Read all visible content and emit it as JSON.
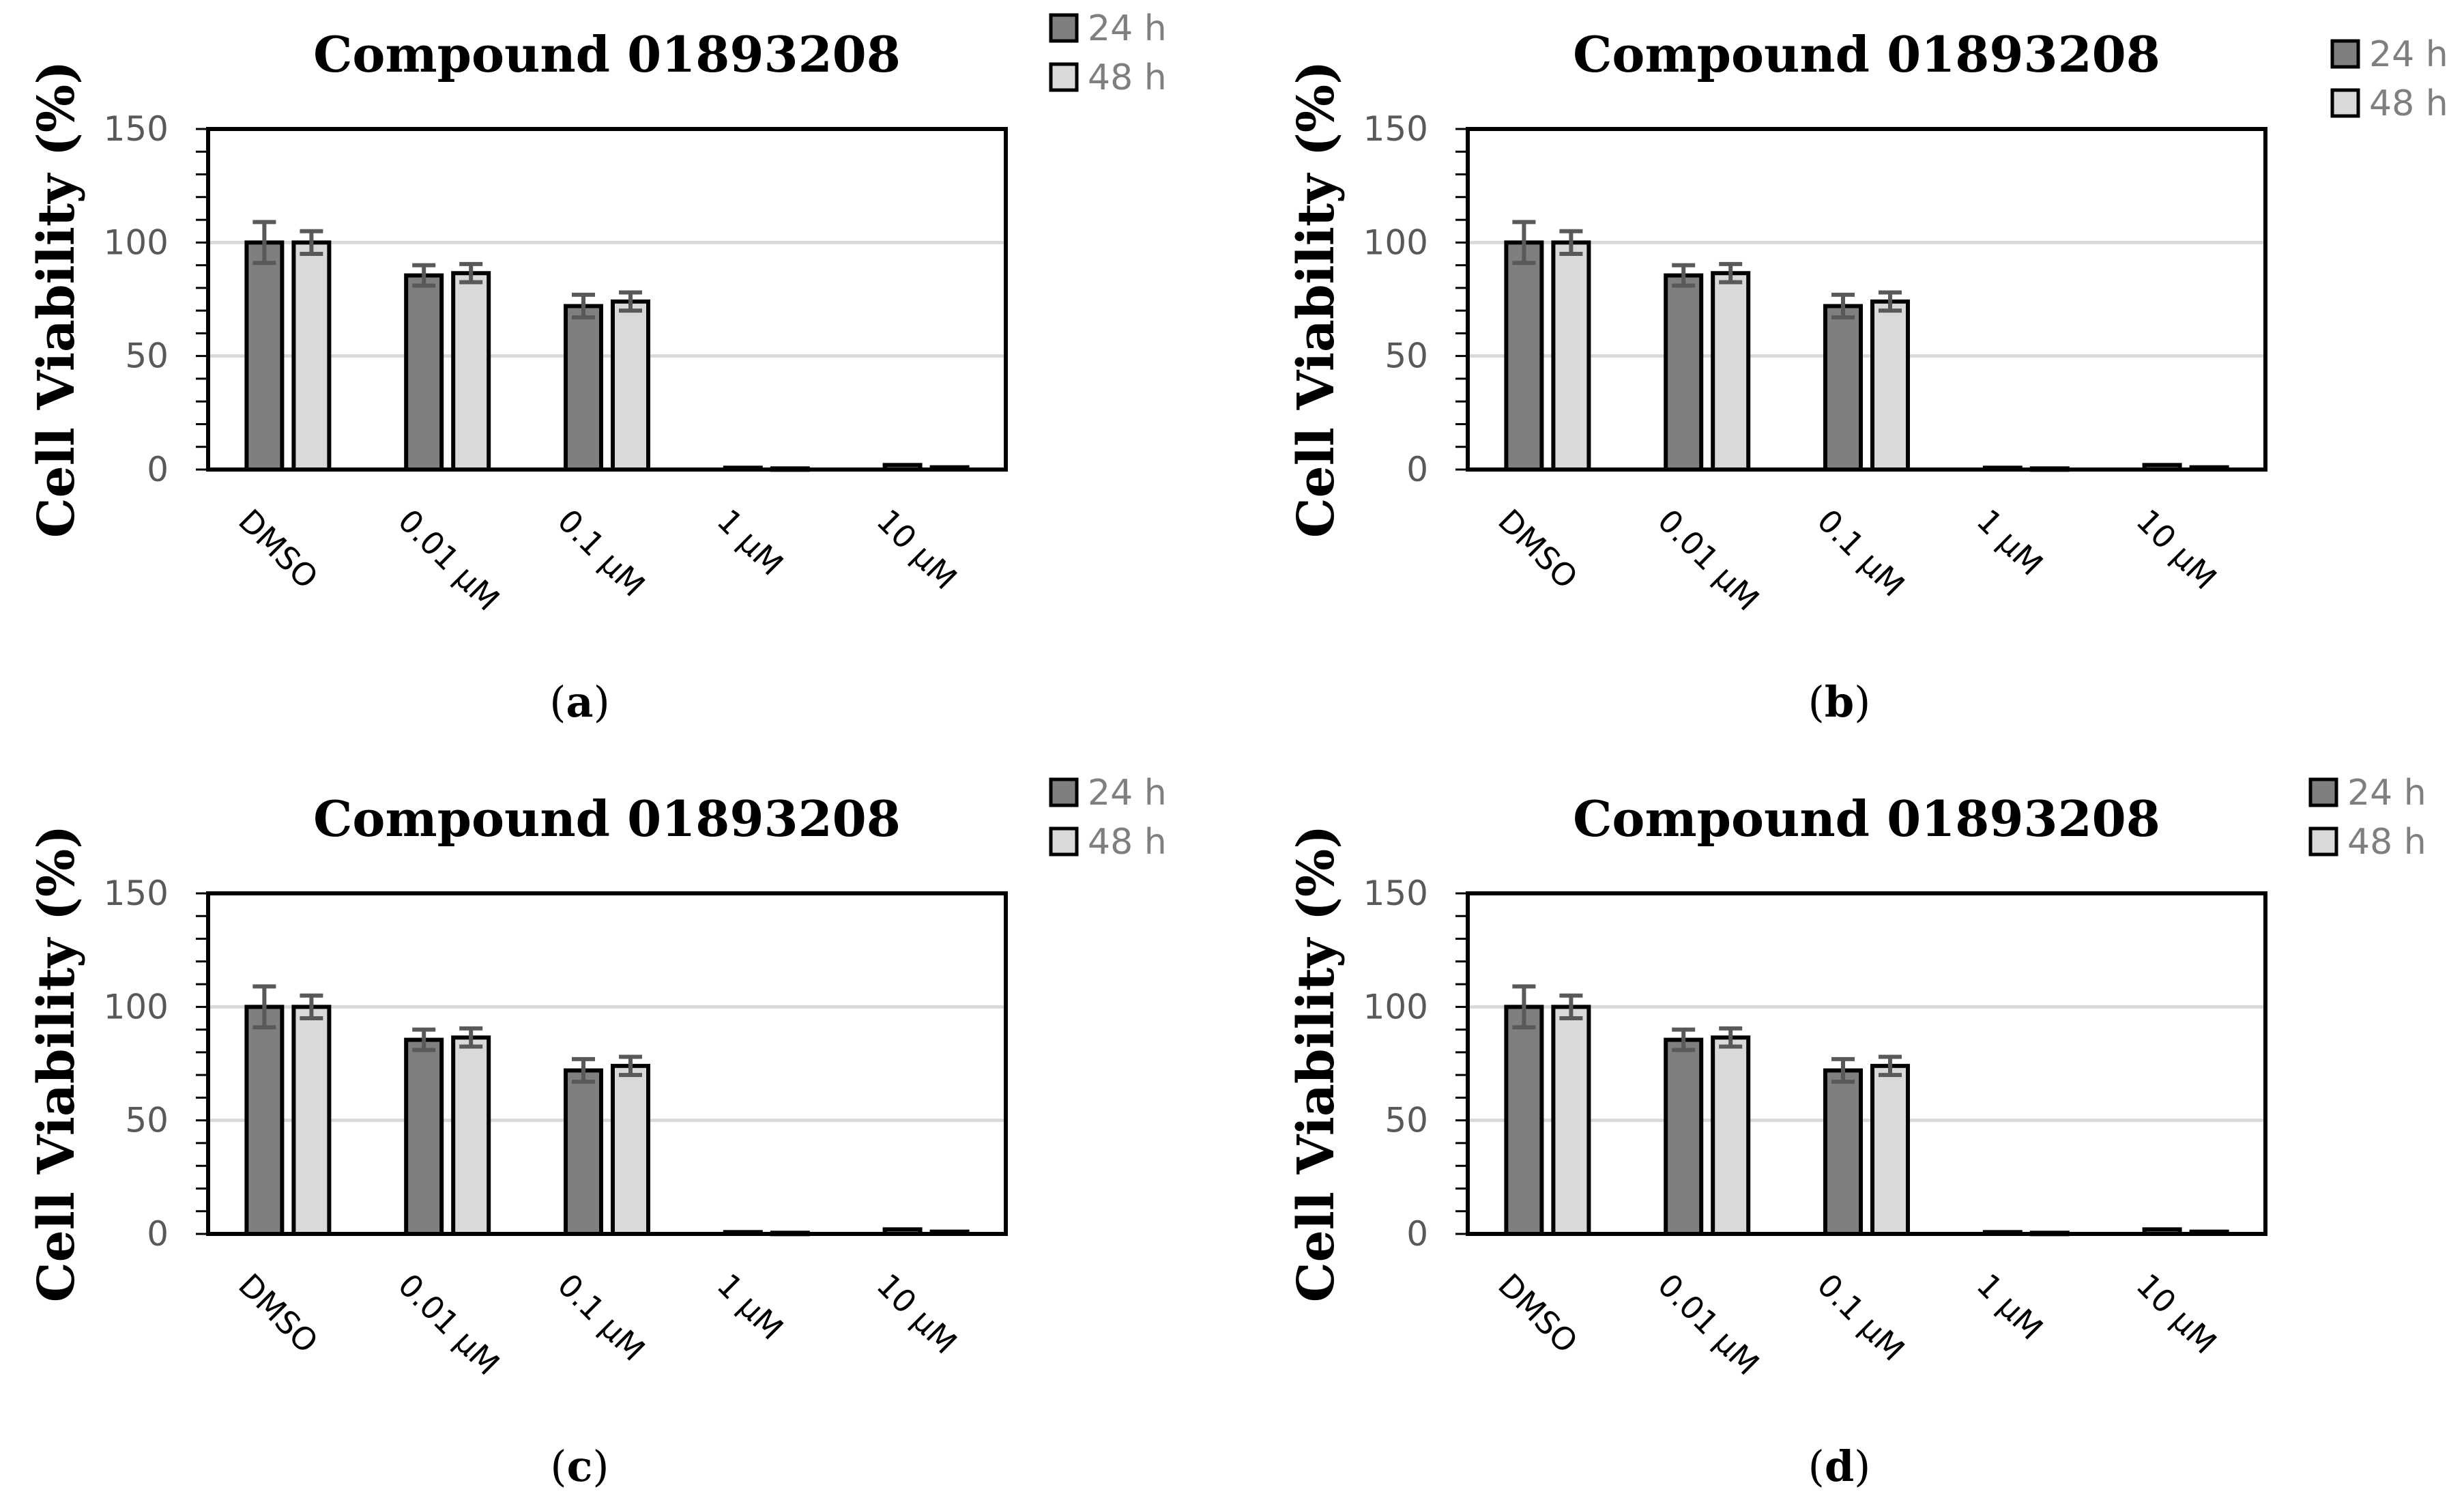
{
  "colors": {
    "series_24h": "#7f7f7f",
    "series_48h": "#d9d9d9",
    "error_bar": "#595959",
    "gridline": "#d9d9d9",
    "axis": "#000000",
    "tick_text": "#595959",
    "legend_text": "#7f7f7f"
  },
  "chart_data": [
    {
      "panel_label": "a",
      "type": "bar",
      "title": "Compound 01893208",
      "xlabel": "",
      "ylabel": "Cell Viability (%)",
      "ylim": [
        0,
        150
      ],
      "yticks": [
        0,
        50,
        100,
        150
      ],
      "grid": true,
      "legend_position": "top-right",
      "categories": [
        "DMSO",
        "0.01 μM",
        "0.1 μM",
        "1 μM",
        "10 μM"
      ],
      "series": [
        {
          "name": "24 h",
          "values": [
            100,
            85.5,
            72,
            0.8,
            2
          ],
          "errors": [
            9,
            4.5,
            5,
            0.3,
            0.5
          ]
        },
        {
          "name": "48 h",
          "values": [
            100,
            86.5,
            74,
            0.5,
            1
          ],
          "errors": [
            5,
            4,
            4,
            0.3,
            0.3
          ]
        }
      ]
    },
    {
      "panel_label": "b",
      "type": "bar",
      "title": "Compound 01893208",
      "xlabel": "",
      "ylabel": "Cell Viability (%)",
      "ylim": [
        0,
        150
      ],
      "yticks": [
        0,
        50,
        100,
        150
      ],
      "grid": true,
      "legend_position": "top-right",
      "categories": [
        "DMSO",
        "0.01 μM",
        "0.1 μM",
        "1 μM",
        "10 μM"
      ],
      "series": [
        {
          "name": "24 h",
          "values": [
            100,
            85.5,
            72,
            0.8,
            2
          ],
          "errors": [
            9,
            4.5,
            5,
            0.3,
            0.5
          ]
        },
        {
          "name": "48 h",
          "values": [
            100,
            86.5,
            74,
            0.5,
            1
          ],
          "errors": [
            5,
            4,
            4,
            0.3,
            0.3
          ]
        }
      ]
    },
    {
      "panel_label": "c",
      "type": "bar",
      "title": "Compound 01893208",
      "xlabel": "",
      "ylabel": "Cell Viability (%)",
      "ylim": [
        0,
        150
      ],
      "yticks": [
        0,
        50,
        100,
        150
      ],
      "grid": true,
      "legend_position": "top-right",
      "categories": [
        "DMSO",
        "0.01 μM",
        "0.1 μM",
        "1 μM",
        "10 μM"
      ],
      "series": [
        {
          "name": "24 h",
          "values": [
            100,
            85.5,
            72,
            0.8,
            2
          ],
          "errors": [
            9,
            4.5,
            5,
            0.3,
            0.5
          ]
        },
        {
          "name": "48 h",
          "values": [
            100,
            86.5,
            74,
            0.5,
            1
          ],
          "errors": [
            5,
            4,
            4,
            0.3,
            0.3
          ]
        }
      ]
    },
    {
      "panel_label": "d",
      "type": "bar",
      "title": "Compound 01893208",
      "xlabel": "",
      "ylabel": "Cell Viability (%)",
      "ylim": [
        0,
        150
      ],
      "yticks": [
        0,
        50,
        100,
        150
      ],
      "grid": true,
      "legend_position": "top-right",
      "categories": [
        "DMSO",
        "0.01 μM",
        "0.1 μM",
        "1 μM",
        "10 μM"
      ],
      "series": [
        {
          "name": "24 h",
          "values": [
            100,
            85.5,
            72,
            0.8,
            2
          ],
          "errors": [
            9,
            4.5,
            5,
            0.3,
            0.5
          ]
        },
        {
          "name": "48 h",
          "values": [
            100,
            86.5,
            74,
            0.5,
            1
          ],
          "errors": [
            5,
            4,
            4,
            0.3,
            0.3
          ]
        }
      ]
    }
  ]
}
